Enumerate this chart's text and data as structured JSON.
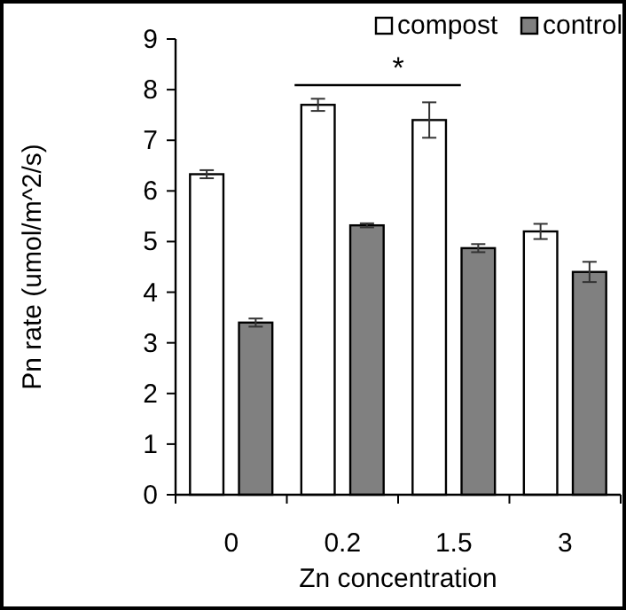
{
  "chart_data": {
    "type": "bar",
    "xlabel": "Zn concentration",
    "ylabel": "Pn rate (umol/m^2/s)",
    "categories": [
      "0",
      "0.2",
      "1.5",
      "3"
    ],
    "series": [
      {
        "name": "compost",
        "color": "#ffffff",
        "values": [
          6.33,
          7.7,
          7.4,
          5.2
        ],
        "errors": [
          0.08,
          0.12,
          0.35,
          0.15
        ]
      },
      {
        "name": "control",
        "color": "#808080",
        "values": [
          3.4,
          5.32,
          4.87,
          4.4
        ],
        "errors": [
          0.08,
          0.04,
          0.08,
          0.2
        ]
      }
    ],
    "ylim": [
      0,
      9
    ],
    "yticks": [
      0,
      1,
      2,
      3,
      4,
      5,
      6,
      7,
      8,
      9
    ],
    "grid": false,
    "legend": "top right",
    "annotations": [
      "*"
    ]
  }
}
